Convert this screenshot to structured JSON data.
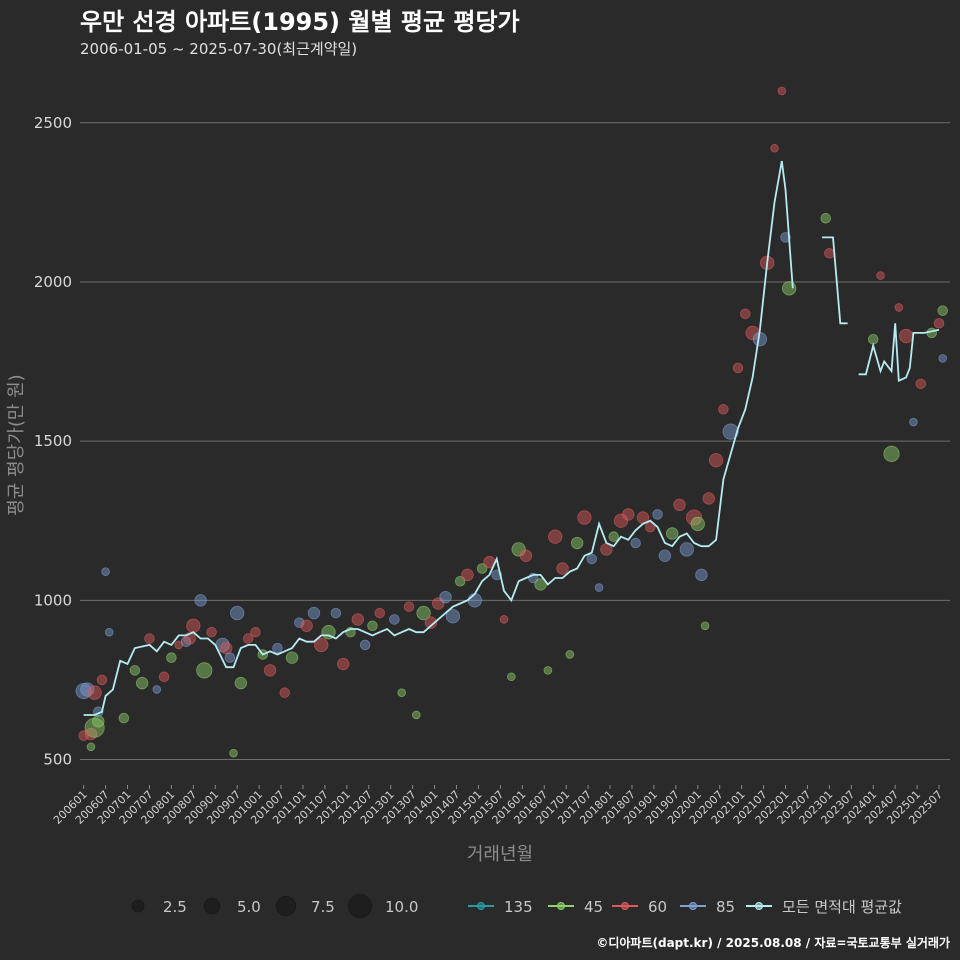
{
  "chart_data": {
    "type": "scatter",
    "title": "우만 선경 아파트(1995) 월별 평균 평당가",
    "subtitle": "2006-01-05 ~ 2025-07-30(최근계약일)",
    "xlabel": "거래년월",
    "ylabel": "평균 평당가(만 원)",
    "caption": "©디아파트(dapt.kr) / 2025.08.08 / 자료=국토교통부 실거래가",
    "ylim": [
      420,
      2650
    ],
    "yticks": [
      500,
      1000,
      1500,
      2000,
      2500
    ],
    "xrange": [
      "200512",
      "202510"
    ],
    "xticks": [
      "200601",
      "200607",
      "200701",
      "200707",
      "200801",
      "200807",
      "200901",
      "200907",
      "201001",
      "201007",
      "201101",
      "201107",
      "201201",
      "201207",
      "201301",
      "201307",
      "201401",
      "201407",
      "201501",
      "201507",
      "201601",
      "201607",
      "201701",
      "201707",
      "201801",
      "201807",
      "201901",
      "201907",
      "202001",
      "202007",
      "202101",
      "202107",
      "202201",
      "202207",
      "202301",
      "202307",
      "202401",
      "202407",
      "202501",
      "202507"
    ],
    "size_legend": {
      "values": [
        2.5,
        5.0,
        7.5,
        10.0
      ],
      "labels": [
        "2.5",
        "5.0",
        "7.5",
        "10.0"
      ]
    },
    "colors": {
      "135": "#2a9aa6",
      "45": "#8fd16b",
      "60": "#e05a5a",
      "85": "#7f9fd6",
      "avg": "#b5ecf1"
    },
    "series_legend": [
      {
        "key": "135",
        "label": "135"
      },
      {
        "key": "45",
        "label": "45"
      },
      {
        "key": "60",
        "label": "60"
      },
      {
        "key": "85",
        "label": "85"
      },
      {
        "key": "avg",
        "label": "모든 면적대 평균값"
      }
    ],
    "average_line": [
      [
        "200601",
        640
      ],
      [
        "200604",
        640
      ],
      [
        "200606",
        650
      ],
      [
        "200607",
        700
      ],
      [
        "200609",
        720
      ],
      [
        "200611",
        810
      ],
      [
        "200701",
        800
      ],
      [
        "200703",
        850
      ],
      [
        "200707",
        860
      ],
      [
        "200709",
        840
      ],
      [
        "200711",
        870
      ],
      [
        "200801",
        860
      ],
      [
        "200803",
        890
      ],
      [
        "200805",
        890
      ],
      [
        "200807",
        900
      ],
      [
        "200809",
        880
      ],
      [
        "200811",
        880
      ],
      [
        "200901",
        860
      ],
      [
        "200904",
        790
      ],
      [
        "200906",
        790
      ],
      [
        "200908",
        850
      ],
      [
        "200910",
        860
      ],
      [
        "200912",
        860
      ],
      [
        "201002",
        830
      ],
      [
        "201004",
        840
      ],
      [
        "201006",
        830
      ],
      [
        "201008",
        840
      ],
      [
        "201010",
        850
      ],
      [
        "201012",
        880
      ],
      [
        "201102",
        870
      ],
      [
        "201104",
        870
      ],
      [
        "201106",
        890
      ],
      [
        "201108",
        890
      ],
      [
        "201110",
        880
      ],
      [
        "201112",
        900
      ],
      [
        "201202",
        910
      ],
      [
        "201204",
        910
      ],
      [
        "201206",
        900
      ],
      [
        "201208",
        890
      ],
      [
        "201210",
        900
      ],
      [
        "201212",
        910
      ],
      [
        "201302",
        890
      ],
      [
        "201304",
        900
      ],
      [
        "201306",
        910
      ],
      [
        "201308",
        900
      ],
      [
        "201310",
        900
      ],
      [
        "201312",
        920
      ],
      [
        "201402",
        940
      ],
      [
        "201404",
        960
      ],
      [
        "201406",
        980
      ],
      [
        "201408",
        990
      ],
      [
        "201410",
        1000
      ],
      [
        "201412",
        1020
      ],
      [
        "201502",
        1060
      ],
      [
        "201504",
        1080
      ],
      [
        "201506",
        1130
      ],
      [
        "201508",
        1030
      ],
      [
        "201510",
        1000
      ],
      [
        "201512",
        1060
      ],
      [
        "201602",
        1070
      ],
      [
        "201604",
        1080
      ],
      [
        "201606",
        1080
      ],
      [
        "201608",
        1050
      ],
      [
        "201610",
        1070
      ],
      [
        "201612",
        1070
      ],
      [
        "201702",
        1090
      ],
      [
        "201704",
        1100
      ],
      [
        "201706",
        1140
      ],
      [
        "201708",
        1150
      ],
      [
        "201710",
        1240
      ],
      [
        "201712",
        1180
      ],
      [
        "201802",
        1170
      ],
      [
        "201804",
        1200
      ],
      [
        "201806",
        1190
      ],
      [
        "201808",
        1220
      ],
      [
        "201810",
        1240
      ],
      [
        "201812",
        1250
      ],
      [
        "201902",
        1230
      ],
      [
        "201904",
        1180
      ],
      [
        "201906",
        1170
      ],
      [
        "201908",
        1200
      ],
      [
        "201910",
        1210
      ],
      [
        "201912",
        1180
      ],
      [
        "202002",
        1170
      ],
      [
        "202004",
        1170
      ],
      [
        "202006",
        1190
      ],
      [
        "202008",
        1380
      ],
      [
        "202010",
        1460
      ],
      [
        "202012",
        1540
      ],
      [
        "202102",
        1600
      ],
      [
        "202104",
        1700
      ],
      [
        "202106",
        1850
      ],
      [
        "202108",
        2060
      ],
      [
        "202110",
        2250
      ],
      [
        "202112",
        2380
      ],
      [
        "202201",
        2290
      ],
      [
        "202203",
        1980
      ]
    ],
    "average_segments": [
      [
        [
          "202211",
          2140
        ],
        [
          "202302",
          2140
        ],
        [
          "202304",
          1870
        ],
        [
          "202306",
          1870
        ]
      ],
      [
        [
          "202309",
          1710
        ],
        [
          "202311",
          1710
        ],
        [
          "202401",
          1800
        ],
        [
          "202403",
          1720
        ],
        [
          "202404",
          1750
        ],
        [
          "202406",
          1720
        ],
        [
          "202407",
          1870
        ],
        [
          "202408",
          1690
        ],
        [
          "202410",
          1700
        ],
        [
          "202411",
          1730
        ],
        [
          "202412",
          1840
        ],
        [
          "202503",
          1840
        ],
        [
          "202507",
          1850
        ]
      ]
    ],
    "bubbles": [
      [
        "200601",
        715,
        "85",
        6
      ],
      [
        "200602",
        720,
        "85",
        5
      ],
      [
        "200603",
        580,
        "60",
        4
      ],
      [
        "200604",
        600,
        "45",
        8
      ],
      [
        "200604",
        710,
        "60",
        5
      ],
      [
        "200605",
        620,
        "45",
        4
      ],
      [
        "200606",
        750,
        "60",
        3
      ],
      [
        "200608",
        900,
        "85",
        2
      ],
      [
        "200607",
        1090,
        "85",
        2
      ],
      [
        "200601",
        575,
        "60",
        3
      ],
      [
        "200603",
        540,
        "45",
        2
      ],
      [
        "200605",
        650,
        "85",
        3
      ],
      [
        "200612",
        630,
        "45",
        3
      ],
      [
        "200703",
        780,
        "45",
        3
      ],
      [
        "200705",
        740,
        "45",
        4
      ],
      [
        "200707",
        880,
        "60",
        3
      ],
      [
        "200709",
        720,
        "85",
        2
      ],
      [
        "200711",
        760,
        "60",
        3
      ],
      [
        "200801",
        820,
        "45",
        3
      ],
      [
        "200803",
        860,
        "60",
        2
      ],
      [
        "200805",
        870,
        "85",
        3
      ],
      [
        "200806",
        880,
        "60",
        4
      ],
      [
        "200807",
        920,
        "60",
        5
      ],
      [
        "200809",
        1000,
        "85",
        4
      ],
      [
        "200810",
        780,
        "45",
        6
      ],
      [
        "200812",
        900,
        "60",
        3
      ],
      [
        "200903",
        860,
        "85",
        5
      ],
      [
        "200904",
        850,
        "60",
        4
      ],
      [
        "200905",
        820,
        "85",
        3
      ],
      [
        "200906",
        520,
        "45",
        2
      ],
      [
        "200907",
        960,
        "85",
        5
      ],
      [
        "200908",
        740,
        "45",
        4
      ],
      [
        "200910",
        880,
        "60",
        3
      ],
      [
        "200912",
        900,
        "60",
        3
      ],
      [
        "201002",
        830,
        "45",
        3
      ],
      [
        "201004",
        780,
        "60",
        4
      ],
      [
        "201006",
        850,
        "85",
        3
      ],
      [
        "201008",
        710,
        "60",
        3
      ],
      [
        "201010",
        820,
        "45",
        4
      ],
      [
        "201012",
        930,
        "85",
        3
      ],
      [
        "201102",
        920,
        "60",
        4
      ],
      [
        "201104",
        960,
        "85",
        4
      ],
      [
        "201106",
        860,
        "60",
        5
      ],
      [
        "201108",
        900,
        "45",
        5
      ],
      [
        "201110",
        960,
        "85",
        3
      ],
      [
        "201112",
        800,
        "60",
        4
      ],
      [
        "201202",
        900,
        "45",
        3
      ],
      [
        "201204",
        940,
        "60",
        4
      ],
      [
        "201206",
        860,
        "85",
        3
      ],
      [
        "201208",
        920,
        "45",
        3
      ],
      [
        "201210",
        960,
        "60",
        3
      ],
      [
        "201302",
        940,
        "85",
        3
      ],
      [
        "201304",
        710,
        "45",
        2
      ],
      [
        "201306",
        980,
        "60",
        3
      ],
      [
        "201308",
        640,
        "45",
        2
      ],
      [
        "201310",
        960,
        "45",
        5
      ],
      [
        "201312",
        930,
        "60",
        4
      ],
      [
        "201402",
        990,
        "60",
        4
      ],
      [
        "201404",
        1010,
        "85",
        4
      ],
      [
        "201406",
        950,
        "85",
        5
      ],
      [
        "201408",
        1060,
        "45",
        3
      ],
      [
        "201410",
        1080,
        "60",
        4
      ],
      [
        "201412",
        1000,
        "85",
        5
      ],
      [
        "201502",
        1100,
        "45",
        3
      ],
      [
        "201504",
        1120,
        "60",
        4
      ],
      [
        "201506",
        1080,
        "85",
        3
      ],
      [
        "201508",
        940,
        "60",
        2
      ],
      [
        "201510",
        760,
        "45",
        2
      ],
      [
        "201512",
        1160,
        "45",
        5
      ],
      [
        "201602",
        1140,
        "60",
        4
      ],
      [
        "201604",
        1070,
        "85",
        3
      ],
      [
        "201606",
        1050,
        "45",
        4
      ],
      [
        "201608",
        780,
        "45",
        2
      ],
      [
        "201610",
        1200,
        "60",
        5
      ],
      [
        "201612",
        1100,
        "60",
        4
      ],
      [
        "201702",
        830,
        "45",
        2
      ],
      [
        "201704",
        1180,
        "45",
        4
      ],
      [
        "201706",
        1260,
        "60",
        5
      ],
      [
        "201708",
        1130,
        "85",
        3
      ],
      [
        "201710",
        1040,
        "85",
        2
      ],
      [
        "201712",
        1160,
        "60",
        4
      ],
      [
        "201802",
        1200,
        "45",
        3
      ],
      [
        "201804",
        1250,
        "60",
        5
      ],
      [
        "201806",
        1270,
        "60",
        4
      ],
      [
        "201808",
        1180,
        "85",
        3
      ],
      [
        "201810",
        1260,
        "60",
        4
      ],
      [
        "201812",
        1230,
        "60",
        3
      ],
      [
        "201902",
        1270,
        "85",
        3
      ],
      [
        "201904",
        1140,
        "85",
        4
      ],
      [
        "201906",
        1210,
        "45",
        4
      ],
      [
        "201908",
        1300,
        "60",
        4
      ],
      [
        "201910",
        1160,
        "85",
        5
      ],
      [
        "201912",
        1260,
        "60",
        6
      ],
      [
        "202001",
        1240,
        "45",
        5
      ],
      [
        "202002",
        1080,
        "85",
        4
      ],
      [
        "202003",
        920,
        "45",
        2
      ],
      [
        "202004",
        1320,
        "60",
        4
      ],
      [
        "202006",
        1440,
        "60",
        5
      ],
      [
        "202008",
        1600,
        "60",
        3
      ],
      [
        "202010",
        1530,
        "85",
        6
      ],
      [
        "202012",
        1730,
        "60",
        3
      ],
      [
        "202102",
        1900,
        "60",
        3
      ],
      [
        "202104",
        1840,
        "60",
        5
      ],
      [
        "202106",
        1820,
        "85",
        5
      ],
      [
        "202108",
        2060,
        "60",
        5
      ],
      [
        "202110",
        2420,
        "60",
        2
      ],
      [
        "202112",
        2600,
        "60",
        2
      ],
      [
        "202201",
        2140,
        "85",
        3
      ],
      [
        "202202",
        1980,
        "45",
        5
      ],
      [
        "202212",
        2200,
        "45",
        3
      ],
      [
        "202301",
        2090,
        "60",
        3
      ],
      [
        "202401",
        1820,
        "45",
        3
      ],
      [
        "202403",
        2020,
        "60",
        2
      ],
      [
        "202406",
        1460,
        "45",
        6
      ],
      [
        "202408",
        1920,
        "60",
        2
      ],
      [
        "202410",
        1830,
        "60",
        5
      ],
      [
        "202412",
        1560,
        "85",
        2
      ],
      [
        "202502",
        1680,
        "60",
        3
      ],
      [
        "202505",
        1840,
        "45",
        3
      ],
      [
        "202507",
        1870,
        "60",
        3
      ],
      [
        "202508",
        1910,
        "45",
        3
      ],
      [
        "202508",
        1760,
        "85",
        2
      ]
    ]
  }
}
